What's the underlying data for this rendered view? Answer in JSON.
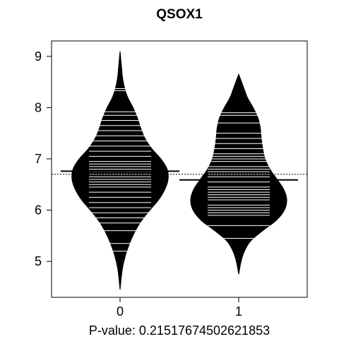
{
  "chart_data": {
    "type": "beanplot",
    "title": "QSOX1",
    "xlabel": "P-value: 0.21517674502621853",
    "ylabel": "",
    "ylim": [
      4.3,
      9.3
    ],
    "yticks": [
      5,
      6,
      7,
      8,
      9
    ],
    "ytick_labels": [
      "5",
      "6",
      "7",
      "8",
      "9"
    ],
    "categories": [
      "0",
      "1"
    ],
    "overall_mean": 6.7,
    "grid": false,
    "legend": "none",
    "colors": {
      "bean": "#000000",
      "strip": "#ffffff",
      "background": "#ffffff"
    },
    "groups": [
      {
        "category": "0",
        "mean": 6.76,
        "y_min": 4.45,
        "y_max": 9.1,
        "density": [
          [
            4.45,
            0.0
          ],
          [
            4.8,
            0.04
          ],
          [
            5.0,
            0.08
          ],
          [
            5.2,
            0.14
          ],
          [
            5.4,
            0.22
          ],
          [
            5.6,
            0.32
          ],
          [
            5.8,
            0.45
          ],
          [
            6.0,
            0.62
          ],
          [
            6.2,
            0.8
          ],
          [
            6.4,
            0.93
          ],
          [
            6.6,
            1.0
          ],
          [
            6.8,
            0.98
          ],
          [
            7.0,
            0.85
          ],
          [
            7.2,
            0.66
          ],
          [
            7.4,
            0.52
          ],
          [
            7.6,
            0.43
          ],
          [
            7.8,
            0.36
          ],
          [
            8.0,
            0.27
          ],
          [
            8.2,
            0.16
          ],
          [
            8.4,
            0.09
          ],
          [
            8.6,
            0.05
          ],
          [
            8.8,
            0.03
          ],
          [
            9.1,
            0.0
          ]
        ],
        "strips": [
          5.2,
          5.35,
          5.6,
          5.75,
          5.85,
          5.95,
          6.05,
          6.15,
          6.25,
          6.35,
          6.45,
          6.5,
          6.55,
          6.6,
          6.65,
          6.7,
          6.75,
          6.8,
          6.85,
          6.9,
          6.95,
          7.05,
          7.15,
          7.25,
          7.35,
          7.45,
          7.55,
          7.65,
          7.75,
          7.85,
          7.92,
          8.33,
          8.37
        ]
      },
      {
        "category": "1",
        "mean": 6.59,
        "y_min": 4.75,
        "y_max": 8.65,
        "density": [
          [
            4.75,
            0.0
          ],
          [
            5.0,
            0.05
          ],
          [
            5.2,
            0.12
          ],
          [
            5.4,
            0.25
          ],
          [
            5.6,
            0.5
          ],
          [
            5.8,
            0.78
          ],
          [
            6.0,
            0.95
          ],
          [
            6.2,
            1.0
          ],
          [
            6.4,
            0.94
          ],
          [
            6.6,
            0.8
          ],
          [
            6.8,
            0.65
          ],
          [
            7.0,
            0.55
          ],
          [
            7.2,
            0.5
          ],
          [
            7.4,
            0.47
          ],
          [
            7.6,
            0.45
          ],
          [
            7.8,
            0.4
          ],
          [
            8.0,
            0.3
          ],
          [
            8.2,
            0.18
          ],
          [
            8.4,
            0.1
          ],
          [
            8.65,
            0.0
          ]
        ],
        "strips": [
          5.45,
          5.7,
          5.9,
          5.95,
          6.0,
          6.05,
          6.1,
          6.2,
          6.25,
          6.3,
          6.35,
          6.4,
          6.45,
          6.55,
          6.65,
          6.7,
          6.75,
          6.8,
          6.85,
          6.95,
          7.0,
          7.05,
          7.1,
          7.2,
          7.3,
          7.4,
          7.5,
          7.7,
          7.85,
          7.9
        ]
      }
    ]
  }
}
